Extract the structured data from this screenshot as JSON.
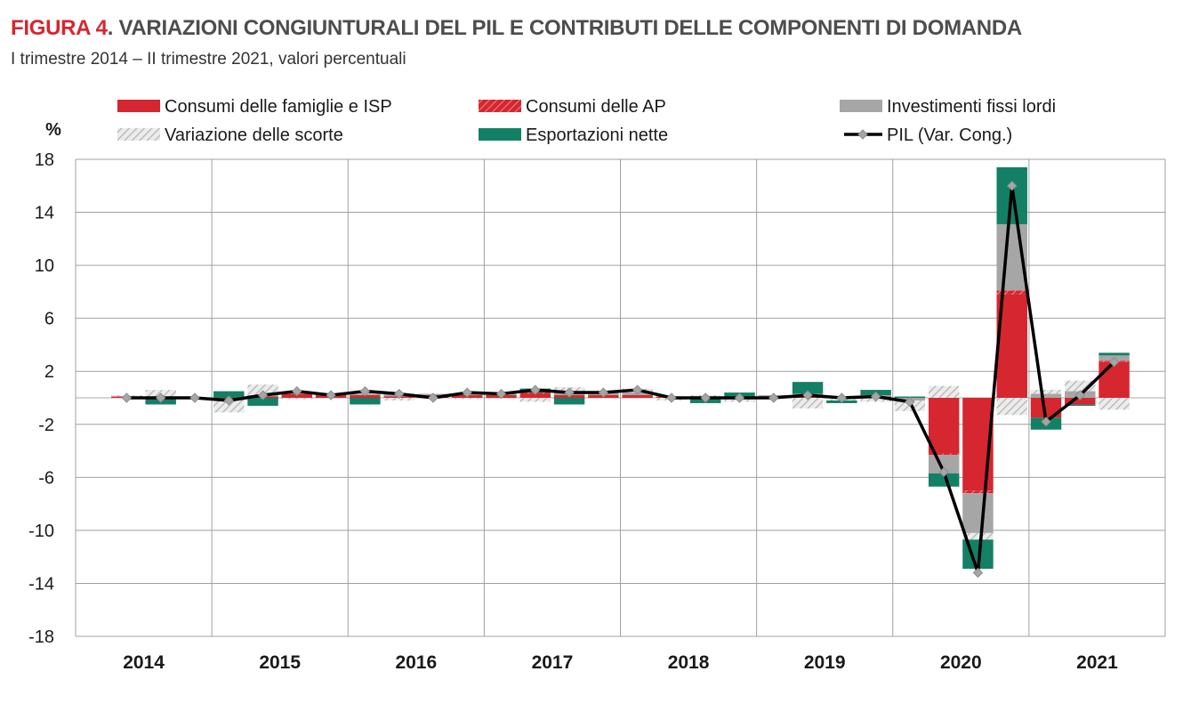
{
  "header": {
    "figure_label": "FIGURA 4",
    "title": ". VARIAZIONI CONGIUNTURALI DEL PIL E CONTRIBUTI DELLE COMPONENTI DI DOMANDA",
    "subtitle": "I trimestre 2014 – II trimestre 2021, valori percentuali"
  },
  "chart_data": {
    "type": "bar",
    "stacked": true,
    "ylabel": "%",
    "ylim": [
      -18,
      18
    ],
    "yticks": [
      18,
      14,
      10,
      6,
      2,
      -2,
      -6,
      -10,
      -14,
      -18
    ],
    "grid": true,
    "legend_position": "top",
    "years": [
      "2014",
      "2015",
      "2016",
      "2017",
      "2018",
      "2019",
      "2020",
      "2021"
    ],
    "x": [
      "2014-Q1",
      "2014-Q2",
      "2014-Q3",
      "2014-Q4",
      "2015-Q1",
      "2015-Q2",
      "2015-Q3",
      "2015-Q4",
      "2016-Q1",
      "2016-Q2",
      "2016-Q3",
      "2016-Q4",
      "2017-Q1",
      "2017-Q2",
      "2017-Q3",
      "2017-Q4",
      "2018-Q1",
      "2018-Q2",
      "2018-Q3",
      "2018-Q4",
      "2019-Q1",
      "2019-Q2",
      "2019-Q3",
      "2019-Q4",
      "2020-Q1",
      "2020-Q2",
      "2020-Q3",
      "2020-Q4",
      "2021-Q1",
      "2021-Q2"
    ],
    "series": [
      {
        "name": "Consumi delle famiglie e ISP",
        "kind": "bar",
        "color": "#d6262f",
        "pattern": "solid",
        "values": [
          0.1,
          0.1,
          0.0,
          -0.1,
          0.1,
          0.3,
          0.2,
          0.2,
          0.1,
          0.2,
          0.2,
          0.2,
          0.3,
          0.2,
          0.2,
          0.2,
          0.1,
          0.0,
          0.0,
          0.1,
          0.1,
          0.1,
          0.1,
          0.0,
          -4.2,
          -7.0,
          7.8,
          -1.5,
          -0.5,
          2.7
        ]
      },
      {
        "name": "Consumi delle AP",
        "kind": "bar",
        "color": "#d6262f",
        "pattern": "hatch",
        "values": [
          0.0,
          0.0,
          0.0,
          0.0,
          0.0,
          0.0,
          0.0,
          0.0,
          0.0,
          0.0,
          0.0,
          0.0,
          0.1,
          0.0,
          0.0,
          0.0,
          0.0,
          0.0,
          0.0,
          0.0,
          0.0,
          0.0,
          0.0,
          0.0,
          -0.1,
          -0.2,
          0.3,
          0.0,
          0.0,
          0.1
        ]
      },
      {
        "name": "Investimenti fissi lordi",
        "kind": "bar",
        "color": "#a6a6a6",
        "pattern": "solid",
        "values": [
          0.0,
          0.0,
          0.0,
          0.0,
          0.1,
          0.1,
          0.1,
          0.1,
          0.2,
          0.1,
          0.1,
          0.2,
          0.0,
          0.2,
          0.2,
          0.2,
          0.0,
          0.1,
          0.0,
          0.1,
          0.2,
          0.0,
          0.1,
          -0.2,
          -1.4,
          -3.0,
          5.0,
          0.3,
          0.5,
          0.4
        ]
      },
      {
        "name": "Variazione delle scorte",
        "kind": "bar",
        "color": "#c8c8c8",
        "pattern": "dotted",
        "values": [
          0.1,
          0.5,
          -0.1,
          -1.0,
          0.8,
          -0.1,
          0.0,
          0.2,
          -0.2,
          0.0,
          -0.1,
          0.0,
          -0.3,
          0.4,
          0.1,
          0.3,
          -0.2,
          0.1,
          -0.3,
          0.0,
          -0.8,
          -0.2,
          -0.3,
          -0.8,
          0.9,
          -0.5,
          -1.3,
          0.3,
          0.8,
          -0.9
        ]
      },
      {
        "name": "Esportazioni nette",
        "kind": "bar",
        "color": "#138066",
        "pattern": "solid",
        "values": [
          0.0,
          -0.5,
          0.0,
          0.5,
          -0.6,
          0.0,
          0.0,
          -0.5,
          0.0,
          0.0,
          0.0,
          0.0,
          0.3,
          -0.5,
          0.0,
          0.0,
          0.0,
          -0.4,
          0.4,
          0.0,
          0.9,
          -0.2,
          0.4,
          0.1,
          -1.0,
          -2.2,
          4.3,
          -0.9,
          -0.1,
          0.2
        ]
      },
      {
        "name": "PIL (Var. Cong.)",
        "kind": "line",
        "color": "#000000",
        "values": [
          0.0,
          0.0,
          0.0,
          -0.2,
          0.2,
          0.5,
          0.2,
          0.5,
          0.3,
          0.0,
          0.4,
          0.3,
          0.6,
          0.4,
          0.4,
          0.6,
          0.0,
          0.0,
          0.0,
          0.0,
          0.2,
          0.0,
          0.1,
          -0.3,
          -5.6,
          -13.2,
          16.0,
          -1.8,
          0.2,
          2.7
        ]
      }
    ]
  }
}
